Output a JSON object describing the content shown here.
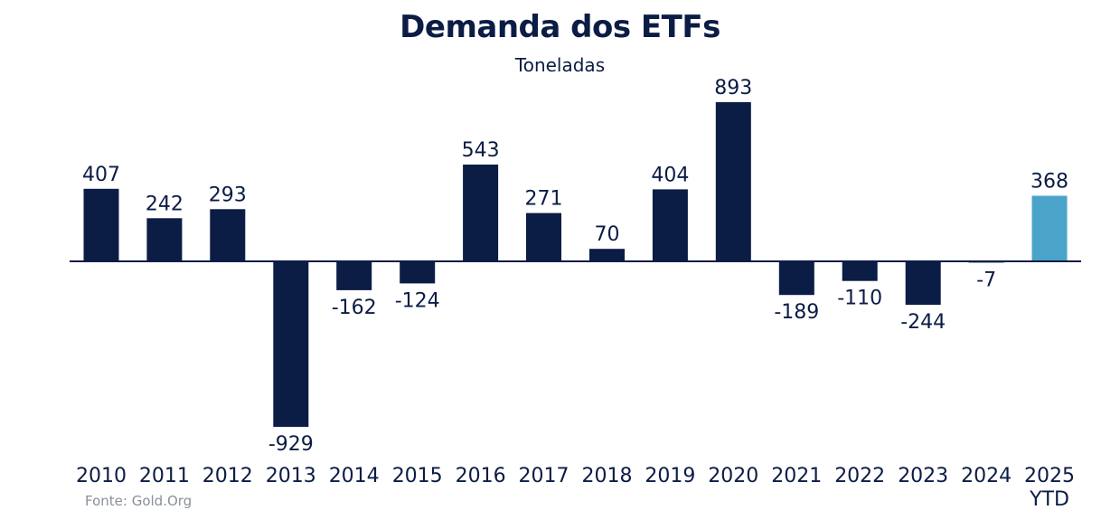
{
  "chart_data": {
    "type": "bar",
    "title": "Demanda dos ETFs",
    "subtitle": "Toneladas",
    "xlabel": "",
    "ylabel": "",
    "categories": [
      "2010",
      "2011",
      "2012",
      "2013",
      "2014",
      "2015",
      "2016",
      "2017",
      "2018",
      "2019",
      "2020",
      "2021",
      "2022",
      "2023",
      "2024",
      "2025 YTD"
    ],
    "tick_labels": [
      [
        "2010"
      ],
      [
        "2011"
      ],
      [
        "2012"
      ],
      [
        "2013"
      ],
      [
        "2014"
      ],
      [
        "2015"
      ],
      [
        "2016"
      ],
      [
        "2017"
      ],
      [
        "2018"
      ],
      [
        "2019"
      ],
      [
        "2020"
      ],
      [
        "2021"
      ],
      [
        "2022"
      ],
      [
        "2023"
      ],
      [
        "2024"
      ],
      [
        "2025",
        "YTD"
      ]
    ],
    "values": [
      407,
      242,
      293,
      -929,
      -162,
      -124,
      543,
      271,
      70,
      404,
      893,
      -189,
      -110,
      -244,
      -7,
      368
    ],
    "data_labels": [
      "407",
      "242",
      "293",
      "-929",
      "-162",
      "-124",
      "543",
      "271",
      "70",
      "404",
      "893",
      "-189",
      "-110",
      "-244",
      "-7",
      "368"
    ],
    "ylim": [
      -929,
      893
    ],
    "grid": false,
    "legend": "none",
    "colors": {
      "bar": "#0b1c45",
      "highlight": "#4aa3c9",
      "axis": "#0b1c45",
      "text": "#0b1c45"
    },
    "highlight_categories": [
      "2025 YTD"
    ],
    "source": "Fonte: Gold.Org"
  }
}
